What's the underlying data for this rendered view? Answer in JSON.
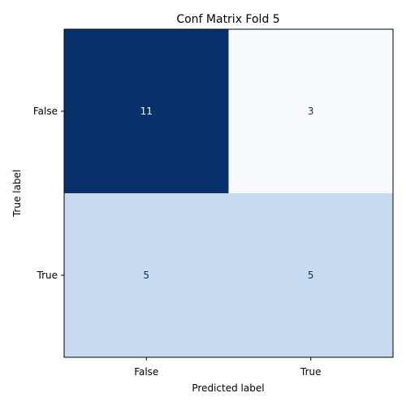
{
  "chart_data": {
    "type": "heatmap",
    "title": "Conf Matrix Fold 5",
    "xlabel": "Predicted label",
    "ylabel": "True label",
    "x_categories": [
      "False",
      "True"
    ],
    "y_categories": [
      "False",
      "True"
    ],
    "matrix": [
      [
        11,
        3
      ],
      [
        5,
        5
      ]
    ],
    "colormap": "Blues",
    "value_range": [
      3,
      11
    ],
    "colorbar": false,
    "grid": false
  },
  "colors": {
    "high": "#08306b",
    "low": "#f7fbff",
    "mid": "#c6dbef",
    "text_dark_cell": "#f7fbff",
    "text_light_cell": "#08306b",
    "axis": "#000000"
  }
}
